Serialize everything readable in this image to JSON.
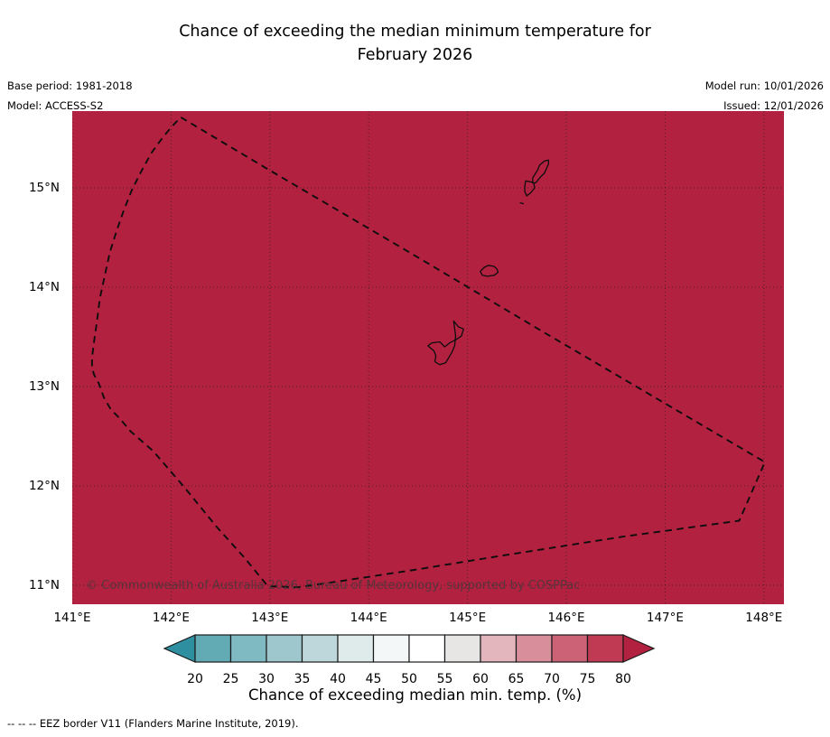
{
  "title": {
    "line1": "Chance of exceeding the median minimum temperature for",
    "line2": "February 2026"
  },
  "header": {
    "base_period": "Base period: 1981-2018",
    "model": "Model: ACCESS-S2",
    "model_run": "Model run: 10/01/2026",
    "issued": "Issued: 12/01/2026"
  },
  "map": {
    "watermark": "© Commonwealth of Australia 2026, Bureau of Meteorology, supported by COSPPac"
  },
  "footnote": {
    "text": "--  --  -- EEZ border V11 (Flanders Marine Institute, 2019)."
  },
  "chart_data": {
    "type": "heatmap",
    "title": "Chance of exceeding the median minimum temperature for February 2026",
    "base_period": "1981-2018",
    "model": "ACCESS-S2",
    "model_run_date": "10/01/2026",
    "issued_date": "12/01/2026",
    "lon_range": [
      141.0,
      148.2
    ],
    "lat_range": [
      10.81,
      15.77
    ],
    "lon_ticks": [
      141,
      142,
      143,
      144,
      145,
      146,
      147,
      148
    ],
    "lat_ticks": [
      11,
      12,
      13,
      14,
      15
    ],
    "x_tick_labels": [
      "141°E",
      "142°E",
      "143°E",
      "144°E",
      "145°E",
      "146°E",
      "147°E",
      "148°E"
    ],
    "y_tick_labels": [
      "11°N",
      "12°N",
      "13°N",
      "14°N",
      "15°N"
    ],
    "grid": true,
    "field_value": "> 80% uniformly across the entire displayed domain (solid dark red fill)",
    "map_fill_color": "#b2213f",
    "gridline_color": "#1b1b1b",
    "border_color": "#0d0d0d",
    "colorbar": {
      "label": "Chance of exceeding median min. temp. (%)",
      "tick_labels": [
        "20",
        "25",
        "30",
        "35",
        "40",
        "45",
        "50",
        "55",
        "60",
        "65",
        "70",
        "75",
        "80"
      ],
      "segment_colors": [
        "#62abb5",
        "#7fb9c1",
        "#9dc7cc",
        "#bed7da",
        "#dfeaeb",
        "#f4f7f7",
        "#ffffff",
        "#e8e5e5",
        "#e3b6bd",
        "#d88e9b",
        "#cb6275",
        "#c03a53"
      ],
      "under_arrow_color": "#2e8fa0",
      "over_arrow_color": "#b2213f",
      "outline_color": "#1a1a1a"
    },
    "eez_border_lonlat": [
      [
        142.1,
        15.71
      ],
      [
        143.01,
        15.17
      ],
      [
        144.38,
        14.37
      ],
      [
        145.75,
        13.56
      ],
      [
        147.12,
        12.76
      ],
      [
        148.01,
        12.24
      ],
      [
        147.75,
        11.65
      ],
      [
        146.58,
        11.49
      ],
      [
        145.36,
        11.3
      ],
      [
        144.43,
        11.15
      ],
      [
        143.77,
        11.05
      ],
      [
        143.29,
        10.98
      ],
      [
        142.98,
        10.99
      ],
      [
        142.74,
        11.28
      ],
      [
        142.46,
        11.59
      ],
      [
        142.14,
        11.98
      ],
      [
        141.82,
        12.35
      ],
      [
        141.59,
        12.55
      ],
      [
        141.48,
        12.68
      ],
      [
        141.39,
        12.77
      ],
      [
        141.32,
        12.89
      ],
      [
        141.27,
        13.03
      ],
      [
        141.22,
        13.12
      ],
      [
        141.2,
        13.19
      ],
      [
        141.2,
        13.29
      ],
      [
        141.22,
        13.45
      ],
      [
        141.25,
        13.66
      ],
      [
        141.28,
        13.89
      ],
      [
        141.33,
        14.12
      ],
      [
        141.38,
        14.35
      ],
      [
        141.45,
        14.57
      ],
      [
        141.52,
        14.77
      ],
      [
        141.6,
        14.97
      ],
      [
        141.69,
        15.15
      ],
      [
        141.8,
        15.35
      ],
      [
        141.91,
        15.5
      ],
      [
        142.01,
        15.62
      ]
    ],
    "islands": [
      {
        "name": "saipan",
        "closed": true,
        "outline": [
          [
            145.73,
            15.23
          ],
          [
            145.78,
            15.27
          ],
          [
            145.82,
            15.28
          ],
          [
            145.82,
            15.24
          ],
          [
            145.78,
            15.15
          ],
          [
            145.73,
            15.1
          ],
          [
            145.69,
            15.05
          ],
          [
            145.66,
            15.05
          ],
          [
            145.66,
            15.1
          ],
          [
            145.71,
            15.18
          ]
        ]
      },
      {
        "name": "tinian",
        "closed": true,
        "outline": [
          [
            145.59,
            15.07
          ],
          [
            145.64,
            15.06
          ],
          [
            145.67,
            15.05
          ],
          [
            145.68,
            15.0
          ],
          [
            145.64,
            14.95
          ],
          [
            145.6,
            14.92
          ],
          [
            145.58,
            14.96
          ],
          [
            145.58,
            15.02
          ]
        ]
      },
      {
        "name": "aguijan",
        "closed": false,
        "outline": [
          [
            145.53,
            14.85
          ],
          [
            145.57,
            14.84
          ]
        ]
      },
      {
        "name": "rota",
        "closed": true,
        "outline": [
          [
            145.13,
            14.16
          ],
          [
            145.17,
            14.2
          ],
          [
            145.21,
            14.22
          ],
          [
            145.27,
            14.21
          ],
          [
            145.3,
            14.18
          ],
          [
            145.31,
            14.15
          ],
          [
            145.27,
            14.12
          ],
          [
            145.2,
            14.11
          ],
          [
            145.15,
            14.12
          ]
        ]
      },
      {
        "name": "guam",
        "closed": true,
        "outline": [
          [
            144.86,
            13.66
          ],
          [
            144.91,
            13.6
          ],
          [
            144.96,
            13.58
          ],
          [
            144.94,
            13.51
          ],
          [
            144.88,
            13.47
          ],
          [
            144.82,
            13.44
          ],
          [
            144.77,
            13.4
          ],
          [
            144.72,
            13.45
          ],
          [
            144.64,
            13.44
          ],
          [
            144.6,
            13.41
          ],
          [
            144.66,
            13.36
          ],
          [
            144.68,
            13.31
          ],
          [
            144.67,
            13.25
          ],
          [
            144.72,
            13.22
          ],
          [
            144.78,
            13.24
          ],
          [
            144.81,
            13.29
          ],
          [
            144.84,
            13.34
          ],
          [
            144.87,
            13.41
          ],
          [
            144.88,
            13.51
          ]
        ]
      }
    ]
  }
}
